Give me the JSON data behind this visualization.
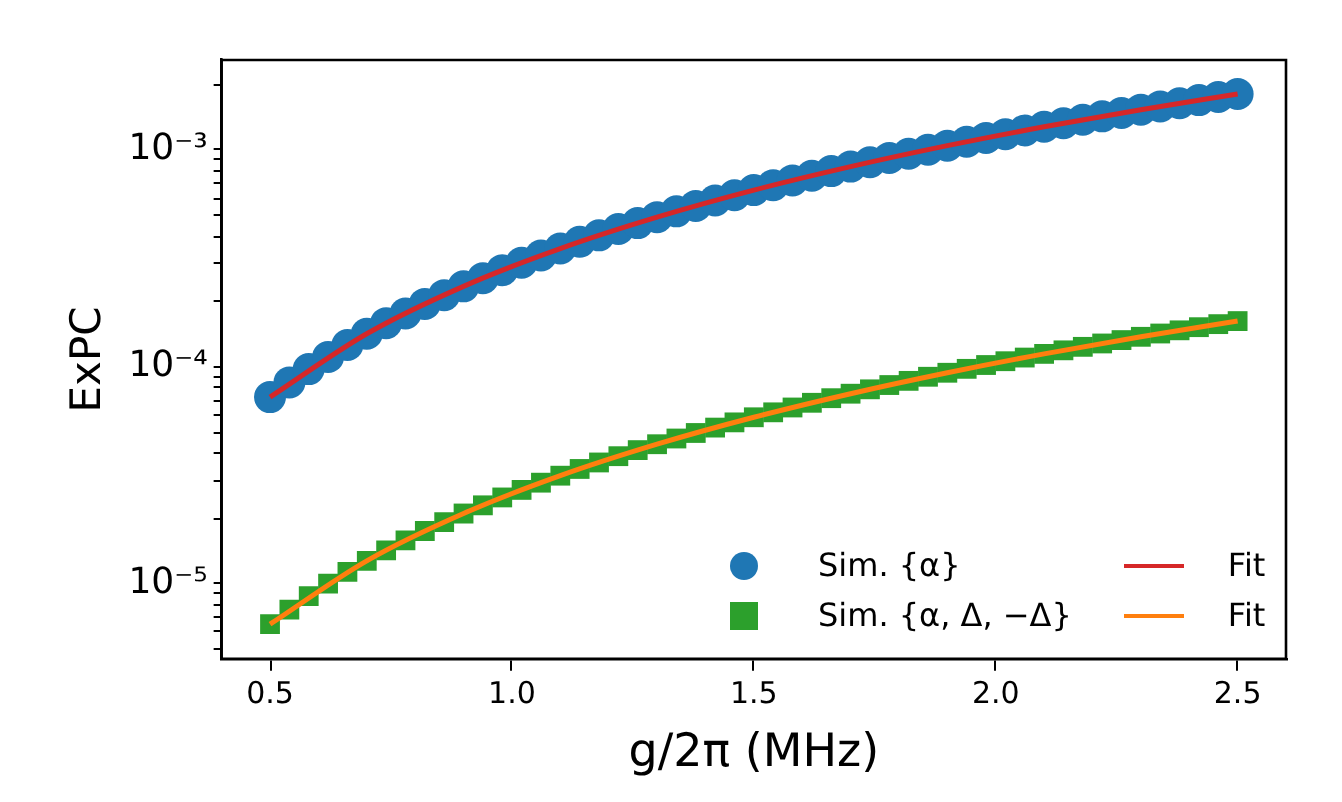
{
  "chart_data": {
    "type": "scatter",
    "xlabel": "g/2π (MHz)",
    "ylabel": "ExPC",
    "log": "y",
    "grid": false,
    "legend": "bottom right",
    "xlim": [
      0.4,
      2.6
    ],
    "xticks": [
      {
        "value": 0.5,
        "label": "0.5"
      },
      {
        "value": 1,
        "label": "1.0"
      },
      {
        "value": 1.5,
        "label": "1.5"
      },
      {
        "value": 2,
        "label": "2.0"
      },
      {
        "value": 2.5,
        "label": "2.5"
      }
    ],
    "ylim": [
      4.5e-06,
      0.0026
    ],
    "yticks": [
      {
        "value": 5e-06,
        "label": null
      },
      {
        "value": 6e-06,
        "label": null
      },
      {
        "value": 7e-06,
        "label": null
      },
      {
        "value": 8e-06,
        "label": null
      },
      {
        "value": 9e-06,
        "label": null
      },
      {
        "value": 1e-05,
        "label": "10⁻⁵"
      },
      {
        "value": 2e-05,
        "label": null
      },
      {
        "value": 3e-05,
        "label": null
      },
      {
        "value": 4e-05,
        "label": null
      },
      {
        "value": 5e-05,
        "label": null
      },
      {
        "value": 6e-05,
        "label": null
      },
      {
        "value": 7e-05,
        "label": null
      },
      {
        "value": 8e-05,
        "label": null
      },
      {
        "value": 9e-05,
        "label": null
      },
      {
        "value": 0.0001,
        "label": "10⁻⁴"
      },
      {
        "value": 0.0002,
        "label": null
      },
      {
        "value": 0.0003,
        "label": null
      },
      {
        "value": 0.0004,
        "label": null
      },
      {
        "value": 0.0005,
        "label": null
      },
      {
        "value": 0.0006,
        "label": null
      },
      {
        "value": 0.0007,
        "label": null
      },
      {
        "value": 0.0008,
        "label": null
      },
      {
        "value": 0.0009,
        "label": null
      },
      {
        "value": 0.001,
        "label": "10⁻³"
      },
      {
        "value": 0.002,
        "label": null
      }
    ],
    "x": [
      0.5,
      0.54,
      0.58,
      0.62,
      0.66,
      0.7,
      0.74,
      0.78,
      0.82,
      0.86,
      0.9,
      0.94,
      0.98,
      1.02,
      1.06,
      1.1,
      1.14,
      1.18,
      1.22,
      1.26,
      1.3,
      1.34,
      1.38,
      1.42,
      1.46,
      1.5,
      1.54,
      1.58,
      1.62,
      1.66,
      1.7,
      1.74,
      1.78,
      1.82,
      1.86,
      1.9,
      1.94,
      1.98,
      2.02,
      2.06,
      2.1,
      2.14,
      2.18,
      2.22,
      2.26,
      2.3,
      2.34,
      2.38,
      2.42,
      2.46,
      2.5
    ],
    "series": [
      {
        "name": "Sim. {α}",
        "marker": "circle",
        "color": "#1f77b4",
        "values": [
          7.25e-05,
          8.46e-05,
          9.76e-05,
          0.000111,
          0.000126,
          0.000142,
          0.000159,
          0.000176,
          0.000195,
          0.000214,
          0.000235,
          0.000256,
          0.000279,
          0.000302,
          0.000326,
          0.000351,
          0.000377,
          0.000404,
          0.000432,
          0.00046,
          0.00049,
          0.000521,
          0.000552,
          0.000585,
          0.000618,
          0.000653,
          0.000688,
          0.000724,
          0.000761,
          0.000799,
          0.000838,
          0.000878,
          0.000919,
          0.000961,
          0.001003,
          0.001047,
          0.001091,
          0.001137,
          0.001183,
          0.001231,
          0.001279,
          0.001328,
          0.001378,
          0.001429,
          0.001481,
          0.001534,
          0.001588,
          0.001643,
          0.001698,
          0.001755,
          0.001813
        ]
      },
      {
        "name": "Sim. {α, Δ, −Δ}",
        "marker": "square",
        "color": "#2ca02c",
        "values": [
          6.5e-06,
          7.58e-06,
          8.75e-06,
          9.99e-06,
          1.133e-05,
          1.274e-05,
          1.424e-05,
          1.582e-05,
          1.748e-05,
          1.923e-05,
          2.106e-05,
          2.297e-05,
          2.497e-05,
          2.705e-05,
          2.921e-05,
          3.146e-05,
          3.379e-05,
          3.62e-05,
          3.87e-05,
          4.128e-05,
          4.394e-05,
          4.669e-05,
          4.951e-05,
          5.243e-05,
          5.542e-05,
          5.85e-05,
          6.166e-05,
          6.491e-05,
          6.823e-05,
          7.165e-05,
          7.514e-05,
          7.872e-05,
          8.238e-05,
          8.612e-05,
          8.995e-05,
          9.386e-05,
          9.785e-05,
          0.0001019,
          0.0001061,
          0.0001103,
          0.0001147,
          0.0001191,
          0.0001236,
          0.0001281,
          0.0001328,
          0.0001375,
          0.0001424,
          0.0001473,
          0.0001523,
          0.0001573,
          0.0001625
        ]
      },
      {
        "name": "Fit",
        "type": "line",
        "marker": "none",
        "line_style": "solid",
        "color": "#d62728",
        "x": [
          0.5,
          0.7,
          0.9,
          1.1,
          1.3,
          1.5,
          1.7,
          1.9,
          2.1,
          2.3,
          2.5
        ],
        "values": [
          7.25e-05,
          0.000142,
          0.000235,
          0.000351,
          0.00049,
          0.000653,
          0.000838,
          0.001047,
          0.001279,
          0.001534,
          0.001813
        ]
      },
      {
        "name": "Fit",
        "type": "line",
        "marker": "none",
        "line_style": "solid",
        "color": "#ff7f0e",
        "x": [
          0.5,
          0.7,
          0.9,
          1.1,
          1.3,
          1.5,
          1.7,
          1.9,
          2.1,
          2.3,
          2.5
        ],
        "values": [
          6.5e-06,
          1.274e-05,
          2.106e-05,
          3.146e-05,
          4.394e-05,
          5.85e-05,
          7.514e-05,
          9.386e-05,
          0.0001147,
          0.0001375,
          0.0001625
        ]
      }
    ]
  }
}
